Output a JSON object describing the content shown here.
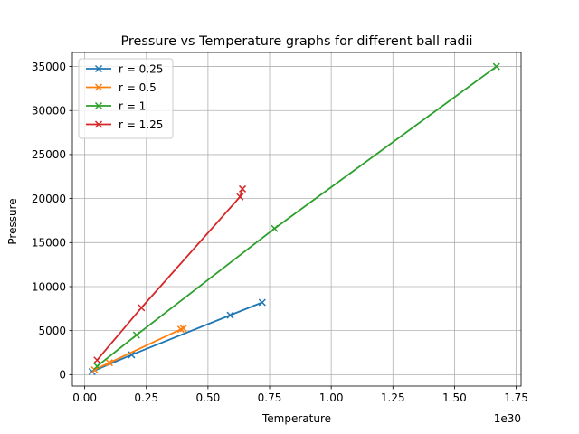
{
  "chart_data": {
    "type": "line",
    "title": "Pressure vs Temperature graphs for different ball radii",
    "xlabel": "Temperature",
    "ylabel": "Pressure",
    "x_offset_label": "1e30",
    "x_scale": 1e+30,
    "xlim": [
      -0.05,
      1.77
    ],
    "ylim": [
      -1300,
      36600
    ],
    "xticks": [
      0.0,
      0.25,
      0.5,
      0.75,
      1.0,
      1.25,
      1.5,
      1.75
    ],
    "xtick_labels": [
      "0.00",
      "0.25",
      "0.50",
      "0.75",
      "1.00",
      "1.25",
      "1.50",
      "1.75"
    ],
    "yticks": [
      0,
      5000,
      10000,
      15000,
      20000,
      25000,
      30000,
      35000
    ],
    "ytick_labels": [
      "0",
      "5000",
      "10000",
      "15000",
      "20000",
      "25000",
      "30000",
      "35000"
    ],
    "grid": true,
    "legend_position": "top-left",
    "marker": "x",
    "series": [
      {
        "name": "r = 0.25",
        "color": "#1f77b4",
        "x": [
          0.03,
          0.19,
          0.59,
          0.72
        ],
        "y": [
          350,
          2250,
          6750,
          8200
        ]
      },
      {
        "name": "r = 0.5",
        "color": "#ff7f0e",
        "x": [
          0.04,
          0.1,
          0.39,
          0.4
        ],
        "y": [
          550,
          1350,
          5150,
          5250
        ]
      },
      {
        "name": "r = 1",
        "color": "#2ca02c",
        "x": [
          0.05,
          0.21,
          0.77,
          1.67
        ],
        "y": [
          950,
          4500,
          16600,
          35000
        ]
      },
      {
        "name": "r = 1.25",
        "color": "#d62728",
        "x": [
          0.05,
          0.23,
          0.63,
          0.64
        ],
        "y": [
          1650,
          7600,
          20200,
          21100
        ]
      }
    ]
  }
}
